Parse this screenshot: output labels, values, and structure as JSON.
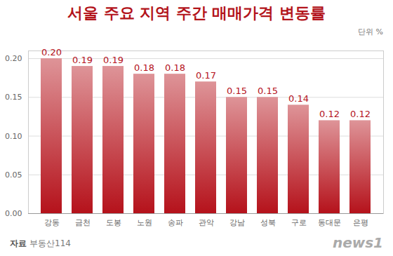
{
  "chart_data": {
    "type": "bar",
    "title": "서울 주요 지역 주간 매매가격 변동률",
    "unit_label": "단위 %",
    "source_label": "자료",
    "source": "부동산114",
    "logo": "news1",
    "categories": [
      "강동",
      "금천",
      "도봉",
      "노원",
      "송파",
      "관악",
      "강남",
      "성북",
      "구로",
      "동대문",
      "은평"
    ],
    "values": [
      0.2,
      0.19,
      0.19,
      0.18,
      0.18,
      0.17,
      0.15,
      0.15,
      0.14,
      0.12,
      0.12
    ],
    "value_labels": [
      "0.20",
      "0.19",
      "0.19",
      "0.18",
      "0.18",
      "0.17",
      "0.15",
      "0.15",
      "0.14",
      "0.12",
      "0.12"
    ],
    "data_labels": true,
    "color": "#b5121b",
    "ylim": [
      0,
      0.21
    ],
    "yticks": [
      {
        "value": 0,
        "label": "0.00"
      },
      {
        "value": 0.05,
        "label": "0.05"
      },
      {
        "value": 0.1,
        "label": "0.10"
      },
      {
        "value": 0.15,
        "label": "0.15"
      },
      {
        "value": 0.2,
        "label": "0.20"
      }
    ],
    "grid": true
  }
}
